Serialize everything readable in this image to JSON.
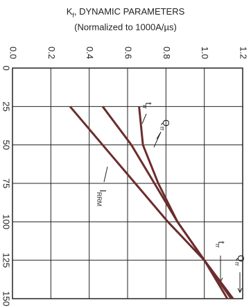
{
  "chart_data": {
    "type": "line",
    "title": {
      "main": "K",
      "sub": "f",
      "rest": ", DYNAMIC PARAMETERS"
    },
    "subtitle": "(Normalized  to 1000A/µs)",
    "x": [
      25,
      50,
      75,
      100,
      125,
      150
    ],
    "xlim": [
      0,
      150
    ],
    "xticks": [
      0,
      25,
      50,
      75,
      100,
      125,
      150
    ],
    "ylim": [
      0,
      1.2
    ],
    "yticks": [
      {
        "value": 0,
        "label": "0.0"
      },
      0.2,
      0.4,
      0.6,
      0.8,
      {
        "value": 1,
        "label": "1.0"
      },
      1.2
    ],
    "grid": true,
    "series": [
      {
        "name": "t",
        "name_sub": "rr",
        "color": "#6b2d2d",
        "values": [
          0.66,
          0.68,
          0.76,
          0.86,
          1.0,
          1.15
        ]
      },
      {
        "name": "Q",
        "name_sub": "rr",
        "color": "#6b2d2d",
        "values": [
          0.47,
          0.62,
          0.74,
          0.86,
          1.0,
          1.12
        ]
      },
      {
        "name": "I",
        "name_sub": "RRM",
        "color": "#6b2d2d",
        "values": [
          0.3,
          0.47,
          0.64,
          0.81,
          1.0,
          1.14
        ]
      }
    ]
  }
}
